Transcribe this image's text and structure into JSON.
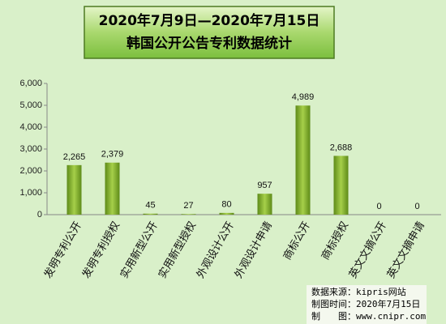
{
  "chart_data": {
    "type": "bar",
    "title": "2020年7月9日—2020年7月15日",
    "subtitle": "韩国公开公告专利数据统计",
    "categories": [
      "发明专利公开",
      "发明专利授权",
      "实用新型公开",
      "实用新型授权",
      "外观设计公开",
      "外观设计申请",
      "商标公开",
      "商标授权",
      "英文文摘公开",
      "英文文摘申请"
    ],
    "values": [
      2265,
      2379,
      45,
      27,
      80,
      957,
      4989,
      2688,
      0,
      0
    ],
    "value_labels": [
      "2,265",
      "2,379",
      "45",
      "27",
      "80",
      "957",
      "4,989",
      "2,688",
      "0",
      "0"
    ],
    "color": "#a6d04a",
    "ylim": [
      0,
      6000
    ],
    "yticks": [
      0,
      {
        "value": 1000,
        "label": "1,000"
      },
      {
        "value": 2000,
        "label": "2,000"
      },
      {
        "value": 3000,
        "label": "3,000"
      },
      {
        "value": 4000,
        "label": "4,000"
      },
      {
        "value": 5000,
        "label": "5,000"
      },
      {
        "value": 6000,
        "label": "6,000"
      }
    ],
    "grid": false,
    "notes": [
      "数据来源：kipris网站",
      "制图时间：2020年7月15日",
      "制　　图：www.cnipr.com"
    ]
  }
}
